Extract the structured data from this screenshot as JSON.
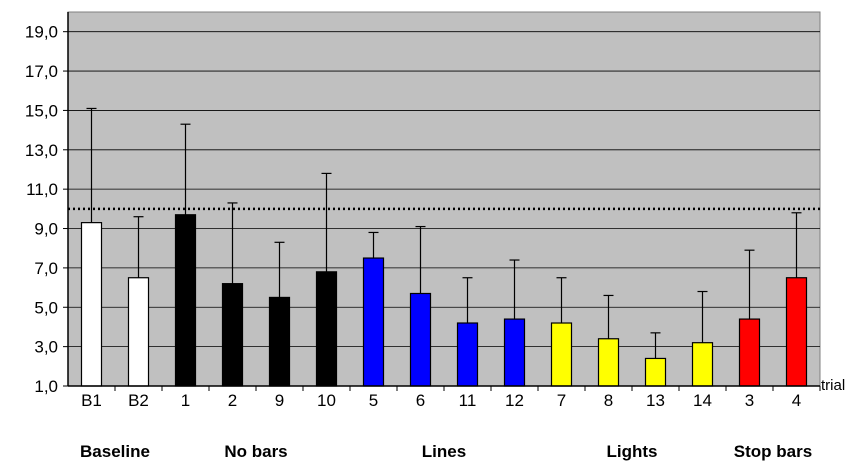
{
  "chart_data": {
    "type": "bar",
    "categories": [
      "B1",
      "B2",
      "1",
      "2",
      "9",
      "10",
      "5",
      "6",
      "11",
      "12",
      "7",
      "8",
      "13",
      "14",
      "3",
      "4"
    ],
    "values": [
      9.3,
      6.5,
      9.7,
      6.2,
      5.5,
      6.8,
      7.5,
      5.7,
      4.2,
      4.4,
      4.2,
      3.4,
      2.4,
      3.2,
      4.4,
      6.5
    ],
    "error_upper": [
      15.1,
      9.6,
      14.3,
      10.3,
      8.3,
      11.8,
      8.8,
      9.1,
      6.5,
      7.4,
      6.5,
      5.6,
      3.7,
      5.8,
      7.9,
      9.8
    ],
    "bar_colors": [
      "#ffffff",
      "#ffffff",
      "#000000",
      "#000000",
      "#000000",
      "#000000",
      "#0000ff",
      "#0000ff",
      "#0000ff",
      "#0000ff",
      "#ffff00",
      "#ffff00",
      "#ffff00",
      "#ffff00",
      "#ff0000",
      "#ff0000"
    ],
    "ylim": [
      1.0,
      20.0
    ],
    "yticks": [
      "1,0",
      "3,0",
      "5,0",
      "7,0",
      "9,0",
      "11,0",
      "13,0",
      "15,0",
      "17,0",
      "19,0"
    ],
    "ytick_values": [
      1,
      3,
      5,
      7,
      9,
      11,
      13,
      15,
      17,
      19
    ],
    "reference_line": 10.0,
    "xlabel": "trial",
    "groups": [
      {
        "label": "Baseline",
        "bars": [
          0,
          1
        ]
      },
      {
        "label": "No bars",
        "bars": [
          2,
          5
        ]
      },
      {
        "label": "Lines",
        "bars": [
          6,
          9
        ]
      },
      {
        "label": "Lights",
        "bars": [
          10,
          13
        ]
      },
      {
        "label": "Stop bars",
        "bars": [
          14,
          15
        ]
      }
    ],
    "grid": true,
    "background_color": "#c0c0c0"
  }
}
